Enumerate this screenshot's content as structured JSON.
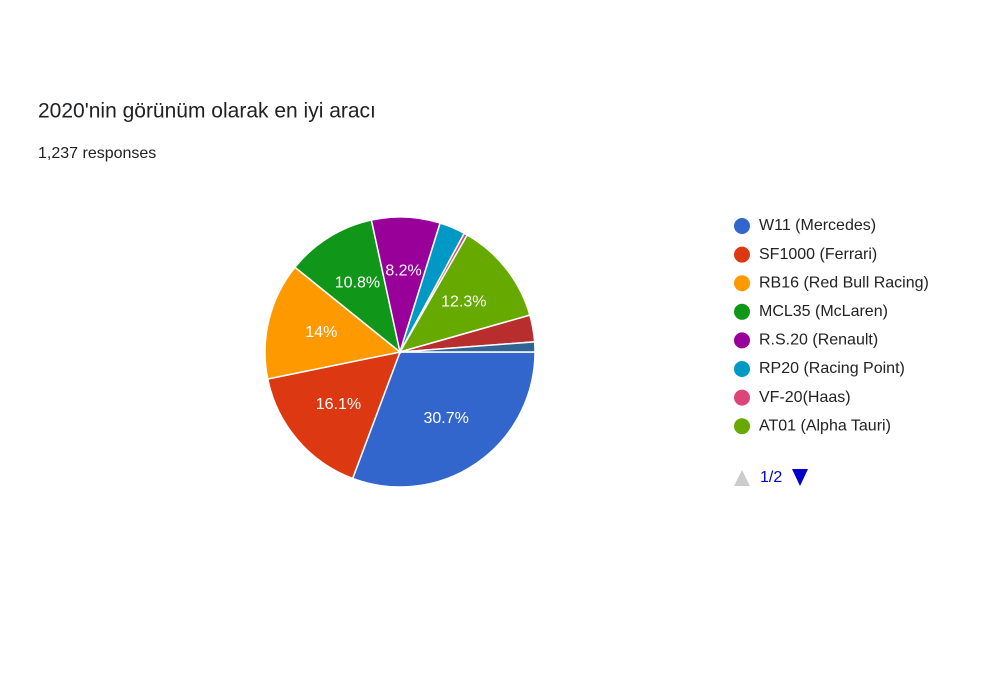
{
  "chart_data": {
    "type": "pie",
    "title": "2020'nin görünüm olarak en iyi aracı",
    "subtitle": "1,237 responses",
    "categories": [
      "W11 (Mercedes)",
      "SF1000 (Ferrari)",
      "RB16 (Red Bull Racing)",
      "MCL35 (McLaren)",
      "R.S.20 (Renault)",
      "RP20 (Racing Point)",
      "VF-20(Haas)",
      "AT01 (Alpha Tauri)",
      null,
      null
    ],
    "values": [
      30.7,
      16.1,
      14,
      10.8,
      8.2,
      3.1,
      0.4,
      12.3,
      3.2,
      1.2
    ],
    "value_labels": [
      "30.7%",
      "16.1%",
      "14%",
      "10.8%",
      "8.2%",
      null,
      null,
      "12.3%",
      null,
      null
    ],
    "colors": [
      "#3366cc",
      "#dc3912",
      "#ff9900",
      "#109618",
      "#990099",
      "#0099c6",
      "#dd4477",
      "#66aa00",
      "#b82e2e",
      "#316395"
    ],
    "legend_position": "right",
    "page_indicator": "1/2"
  }
}
